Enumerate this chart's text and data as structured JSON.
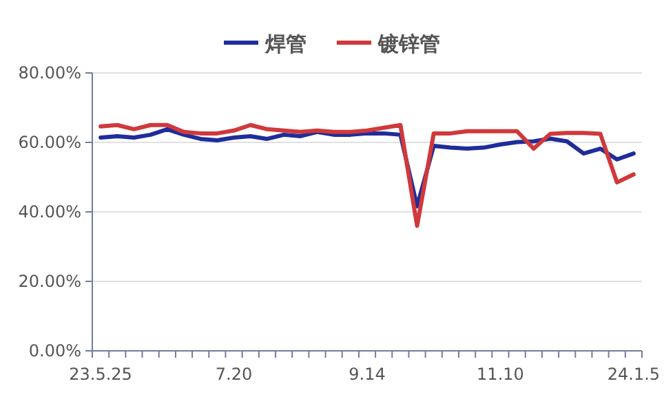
{
  "chart_data": {
    "type": "line",
    "categories": [
      "23.5.25",
      null,
      null,
      null,
      null,
      null,
      null,
      null,
      "7.20",
      null,
      null,
      null,
      null,
      null,
      null,
      null,
      "9.14",
      null,
      null,
      null,
      null,
      null,
      null,
      null,
      "11.10",
      null,
      null,
      null,
      null,
      null,
      null,
      null,
      "24.1.5"
    ],
    "series": [
      {
        "name": "焊管",
        "color": "#1f2d9a",
        "values": [
          61.4,
          61.8,
          61.4,
          62.2,
          63.8,
          62.2,
          61.0,
          60.6,
          61.4,
          61.8,
          61.0,
          62.2,
          61.8,
          63.0,
          62.2,
          62.2,
          62.6,
          62.6,
          62.2,
          41.6,
          59.0,
          58.5,
          58.2,
          58.5,
          59.4,
          60.1,
          60.3,
          61.1,
          60.3,
          56.8,
          58.2,
          55.1,
          56.8
        ]
      },
      {
        "name": "镀锌管",
        "color": "#d0393b",
        "values": [
          64.6,
          65.0,
          63.8,
          65.0,
          65.0,
          63.0,
          62.6,
          62.6,
          63.4,
          65.0,
          63.8,
          63.4,
          63.0,
          63.4,
          63.0,
          63.0,
          63.4,
          64.2,
          65.0,
          36.0,
          62.6,
          62.6,
          63.2,
          63.2,
          63.2,
          63.2,
          58.2,
          62.5,
          62.7,
          62.7,
          62.5,
          48.5,
          50.8
        ]
      }
    ],
    "ylim": [
      0,
      80
    ],
    "yticks": [
      {
        "value": 0,
        "label": "0.00%"
      },
      {
        "value": 20,
        "label": "20.00%"
      },
      {
        "value": 40,
        "label": "40.00%"
      },
      {
        "value": 60,
        "label": "60.00%"
      },
      {
        "value": 80,
        "label": "80.00%"
      }
    ],
    "grid": "y",
    "legend": "top",
    "marker": "none",
    "line_style": "solid"
  }
}
